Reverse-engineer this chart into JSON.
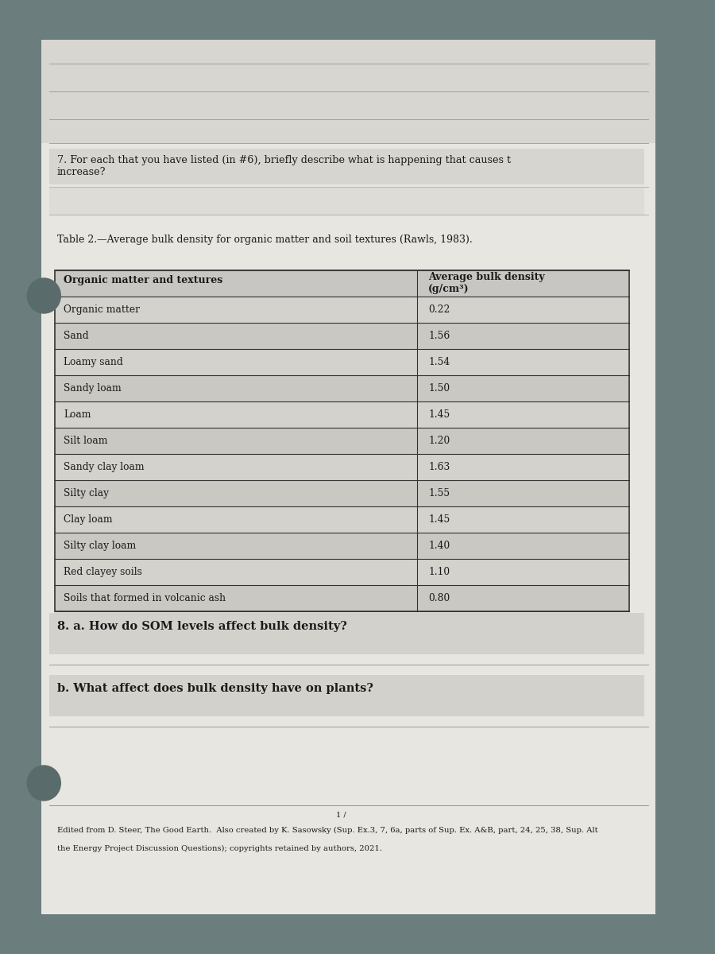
{
  "bg_outer": "#6b7d7d",
  "bg_paper": "#e8e6e0",
  "question7": "7. For each that you have listed (in #6), briefly describe what is happening that causes t\nincrease?",
  "table_caption": "Table 2.—Average bulk density for organic matter and soil textures (Rawls, 1983).",
  "col1_header": "Organic matter and textures",
  "col2_header_line1": "Average bulk density",
  "col2_header_line2": "(g/cm³)",
  "rows": [
    [
      "Organic matter",
      "0.22"
    ],
    [
      "Sand",
      "1.56"
    ],
    [
      "Loamy sand",
      "1.54"
    ],
    [
      "Sandy loam",
      "1.50"
    ],
    [
      "Loam",
      "1.45"
    ],
    [
      "Silt loam",
      "1.20"
    ],
    [
      "Sandy clay loam",
      "1.63"
    ],
    [
      "Silty clay",
      "1.55"
    ],
    [
      "Clay loam",
      "1.45"
    ],
    [
      "Silty clay loam",
      "1.40"
    ],
    [
      "Red clayey soils",
      "1.10"
    ],
    [
      "Soils that formed in volcanic ash",
      "0.80"
    ]
  ],
  "question8a": "8. a. How do SOM levels affect bulk density?",
  "question8b": "b. What affect does bulk density have on plants?",
  "footer_line1": "1 /",
  "footer_line2": "Edited from D. Steer, The Good Earth.  Also created by K. Sasowsky (Sup. Ex.3, 7, 6a, parts of Sup. Ex. A&B, part, 24, 25, 38, Sup. Alt",
  "footer_line3": "the Energy Project Discussion Questions); copyrights retained by authors, 2021.",
  "table_border_color": "#333333",
  "text_color": "#1a1a1a",
  "circle_color": "#5a6b6b"
}
